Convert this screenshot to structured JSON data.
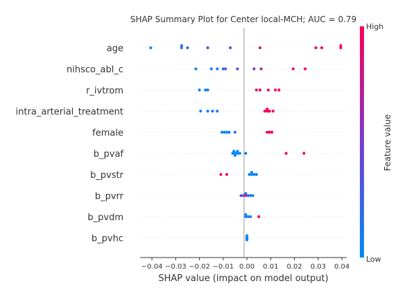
{
  "chart_data": {
    "type": "scatter",
    "title": "SHAP Summary Plot for Center local-MCH; AUC = 0.79",
    "xlabel": "SHAP value (impact on model output)",
    "xlim": [
      -0.045,
      0.042
    ],
    "xticks": [
      -0.04,
      -0.03,
      -0.02,
      -0.01,
      0.0,
      0.01,
      0.02,
      0.03,
      0.04
    ],
    "xtick_labels": [
      "−0.04",
      "−0.03",
      "−0.02",
      "−0.01",
      "0.00",
      "0.01",
      "0.02",
      "0.03",
      "0.04"
    ],
    "grid": false,
    "colorbar": {
      "label": "Feature value",
      "high_label": "High",
      "low_label": "Low",
      "high_color": "#ff0052",
      "mid_color": "#7b3bd0",
      "low_color": "#008bfb"
    },
    "features": [
      {
        "name": "age",
        "points": [
          {
            "x": -0.0405,
            "v": 0.0,
            "j": 0.0
          },
          {
            "x": -0.0275,
            "v": 0.15,
            "j": 0.0
          },
          {
            "x": -0.0275,
            "v": 0.2,
            "j": -1.0
          },
          {
            "x": -0.025,
            "v": 0.25,
            "j": 0.0
          },
          {
            "x": -0.0165,
            "v": 0.35,
            "j": 0.0
          },
          {
            "x": -0.007,
            "v": 0.45,
            "j": 0.0
          },
          {
            "x": 0.0055,
            "v": 0.85,
            "j": 0.0
          },
          {
            "x": 0.029,
            "v": 0.95,
            "j": 0.0
          },
          {
            "x": 0.0315,
            "v": 0.95,
            "j": 0.0
          },
          {
            "x": 0.0395,
            "v": 1.0,
            "j": 0.0
          },
          {
            "x": 0.0395,
            "v": 1.0,
            "j": -1.0
          }
        ]
      },
      {
        "name": "nihsco_abl_c",
        "points": [
          {
            "x": -0.0215,
            "v": 0.05,
            "j": 0.0
          },
          {
            "x": -0.015,
            "v": 0.1,
            "j": 0.0
          },
          {
            "x": -0.0125,
            "v": 0.15,
            "j": 0.0
          },
          {
            "x": -0.01,
            "v": 0.2,
            "j": 0.0
          },
          {
            "x": -0.009,
            "v": 0.25,
            "j": 0.0
          },
          {
            "x": -0.004,
            "v": 0.4,
            "j": 0.0
          },
          {
            "x": 0.003,
            "v": 0.6,
            "j": 0.0
          },
          {
            "x": 0.006,
            "v": 0.7,
            "j": 0.0
          },
          {
            "x": 0.0195,
            "v": 0.95,
            "j": 0.0
          },
          {
            "x": 0.0245,
            "v": 1.0,
            "j": 0.0
          }
        ]
      },
      {
        "name": "r_ivtrom",
        "points": [
          {
            "x": -0.02,
            "v": 0.05,
            "j": 0.0
          },
          {
            "x": -0.0175,
            "v": 0.1,
            "j": 0.0
          },
          {
            "x": -0.0165,
            "v": 0.1,
            "j": 0.0
          },
          {
            "x": 0.004,
            "v": 0.9,
            "j": 0.0
          },
          {
            "x": 0.0055,
            "v": 0.95,
            "j": 0.0
          },
          {
            "x": 0.009,
            "v": 0.95,
            "j": 0.0
          },
          {
            "x": 0.012,
            "v": 1.0,
            "j": 0.0
          },
          {
            "x": 0.0135,
            "v": 1.0,
            "j": 0.0
          }
        ]
      },
      {
        "name": "intra_arterial_treatment",
        "points": [
          {
            "x": -0.0195,
            "v": 0.05,
            "j": 0.0
          },
          {
            "x": -0.0165,
            "v": 0.05,
            "j": 0.0
          },
          {
            "x": -0.0145,
            "v": 0.1,
            "j": 0.0
          },
          {
            "x": -0.0125,
            "v": 0.1,
            "j": 0.0
          },
          {
            "x": 0.0075,
            "v": 0.95,
            "j": 0.0
          },
          {
            "x": 0.0085,
            "v": 0.95,
            "j": 0.0
          },
          {
            "x": 0.009,
            "v": 1.0,
            "j": 0.0
          },
          {
            "x": 0.0095,
            "v": 1.0,
            "j": 0.0
          },
          {
            "x": 0.011,
            "v": 1.0,
            "j": 0.0
          },
          {
            "x": 0.0085,
            "v": 1.0,
            "j": -1.0
          }
        ]
      },
      {
        "name": "female",
        "points": [
          {
            "x": -0.0105,
            "v": 0.05,
            "j": 0.0
          },
          {
            "x": -0.0095,
            "v": 0.05,
            "j": 0.0
          },
          {
            "x": -0.0085,
            "v": 0.05,
            "j": 0.0
          },
          {
            "x": -0.0075,
            "v": 0.05,
            "j": 0.0
          },
          {
            "x": -0.005,
            "v": 0.1,
            "j": 0.0
          },
          {
            "x": 0.0085,
            "v": 0.95,
            "j": 0.0
          },
          {
            "x": 0.0095,
            "v": 0.95,
            "j": 0.0
          },
          {
            "x": 0.0105,
            "v": 1.0,
            "j": 0.0
          }
        ]
      },
      {
        "name": "b_pvaf",
        "points": [
          {
            "x": -0.0055,
            "v": 0.05,
            "j": -1.0
          },
          {
            "x": -0.004,
            "v": 0.05,
            "j": -1.0
          },
          {
            "x": -0.006,
            "v": 0.05,
            "j": 0.0
          },
          {
            "x": -0.005,
            "v": 0.05,
            "j": 0.0
          },
          {
            "x": -0.004,
            "v": 0.05,
            "j": 0.0
          },
          {
            "x": -0.003,
            "v": 0.05,
            "j": 0.0
          },
          {
            "x": -0.005,
            "v": 0.05,
            "j": 1.0
          },
          {
            "x": -0.0005,
            "v": 0.1,
            "j": 0.0
          },
          {
            "x": 0.0165,
            "v": 0.95,
            "j": 0.0
          },
          {
            "x": 0.024,
            "v": 1.0,
            "j": 0.0
          }
        ]
      },
      {
        "name": "b_pvstr",
        "points": [
          {
            "x": -0.011,
            "v": 0.95,
            "j": 0.0
          },
          {
            "x": -0.0085,
            "v": 0.95,
            "j": 0.0
          },
          {
            "x": 0.002,
            "v": 0.05,
            "j": -1.0
          },
          {
            "x": 0.001,
            "v": 0.05,
            "j": 0.0
          },
          {
            "x": 0.002,
            "v": 0.05,
            "j": 0.0
          },
          {
            "x": 0.003,
            "v": 0.05,
            "j": 0.0
          },
          {
            "x": 0.004,
            "v": 0.05,
            "j": 0.0
          }
        ]
      },
      {
        "name": "b_pvrr",
        "points": [
          {
            "x": -0.0005,
            "v": 0.05,
            "j": -1.0
          },
          {
            "x": -0.0025,
            "v": 0.5,
            "j": 0.0
          },
          {
            "x": -0.0015,
            "v": 0.3,
            "j": 0.0
          },
          {
            "x": -0.0005,
            "v": 0.9,
            "j": 0.0
          },
          {
            "x": 0.0005,
            "v": 0.2,
            "j": 0.0
          },
          {
            "x": 0.0015,
            "v": 0.05,
            "j": 0.0
          },
          {
            "x": 0.0025,
            "v": 0.05,
            "j": 0.0
          }
        ]
      },
      {
        "name": "b_pvdm",
        "points": [
          {
            "x": -0.0005,
            "v": 0.05,
            "j": -1.0
          },
          {
            "x": -0.0005,
            "v": 0.05,
            "j": 0.0
          },
          {
            "x": 0.0005,
            "v": 0.05,
            "j": 0.0
          },
          {
            "x": 0.0015,
            "v": 0.05,
            "j": 0.0
          },
          {
            "x": 0.005,
            "v": 0.95,
            "j": 0.0
          }
        ]
      },
      {
        "name": "b_pvhc",
        "points": [
          {
            "x": 0.0,
            "v": 0.05,
            "j": -1.0
          },
          {
            "x": 0.0,
            "v": 0.05,
            "j": -0.5
          },
          {
            "x": 0.0,
            "v": 0.05,
            "j": 0.0
          },
          {
            "x": 0.0,
            "v": 0.05,
            "j": 0.5
          },
          {
            "x": 0.0,
            "v": 0.05,
            "j": 1.0
          }
        ]
      }
    ]
  }
}
